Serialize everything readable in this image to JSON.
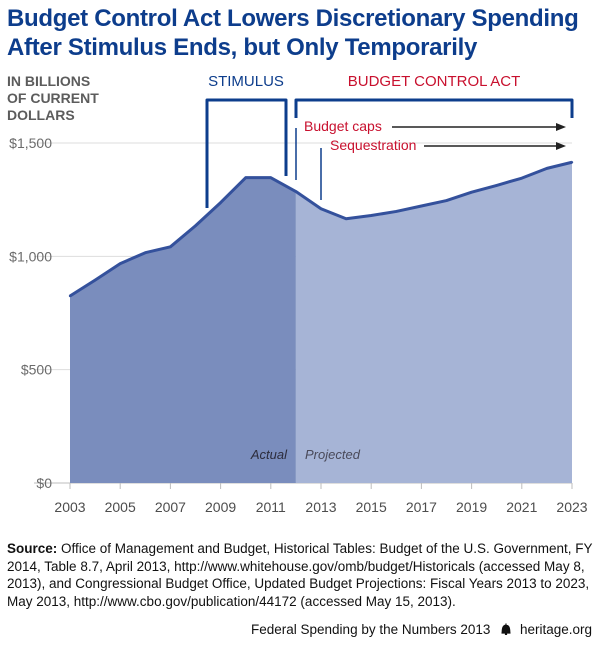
{
  "title_line1": "Budget Control Act Lowers Discretionary Spending",
  "title_line2": "After Stimulus Ends, but Only Temporarily",
  "units_label": [
    "IN BILLIONS",
    "OF CURRENT",
    "DOLLARS"
  ],
  "annotations": {
    "stimulus": "STIMULUS",
    "bca": "BUDGET CONTROL ACT",
    "budget_caps": "Budget caps",
    "sequestration": "Sequestration",
    "actual": "Actual",
    "projected": "Projected"
  },
  "colors": {
    "title": "#0d3d8c",
    "bracket": "#0d3d8c",
    "bca": "#c8102e",
    "actual_fill": "#7a8dbd",
    "projected_fill": "#a6b4d6",
    "line": "#34519c"
  },
  "chart_data": {
    "type": "area",
    "x": [
      2003,
      2004,
      2005,
      2006,
      2007,
      2008,
      2009,
      2010,
      2011,
      2012,
      2013,
      2014,
      2015,
      2016,
      2017,
      2018,
      2019,
      2020,
      2021,
      2022,
      2023
    ],
    "values": [
      825,
      895,
      968,
      1016,
      1042,
      1135,
      1237,
      1347,
      1347,
      1286,
      1210,
      1166,
      1180,
      1198,
      1222,
      1246,
      1283,
      1313,
      1345,
      1388,
      1415
    ],
    "actual_through": 2012,
    "xticks": [
      "2003",
      "2005",
      "2007",
      "2009",
      "2011",
      "2013",
      "2015",
      "2017",
      "2019",
      "2021",
      "2023"
    ],
    "yticks": [
      "$0",
      "$500",
      "$1,000",
      "$1,500"
    ],
    "ylim": [
      0,
      1500
    ],
    "xlim": [
      2003,
      2023
    ],
    "grid": true
  },
  "source": {
    "label": "Source:",
    "text": " Office of Management and Budget, Historical Tables: Budget of the U.S. Government, FY 2014, Table 8.7, April 2013, http://www.whitehouse.gov/omb/budget/Historicals (accessed May 8, 2013), and Congressional Budget Office, Updated Budget Projections: Fiscal Years 2013 to 2023, May 2013, http://www.cbo.gov/publication/44172 (accessed May 15, 2013)."
  },
  "footer": {
    "series": "Federal Spending by the Numbers 2013",
    "site": "heritage.org"
  }
}
